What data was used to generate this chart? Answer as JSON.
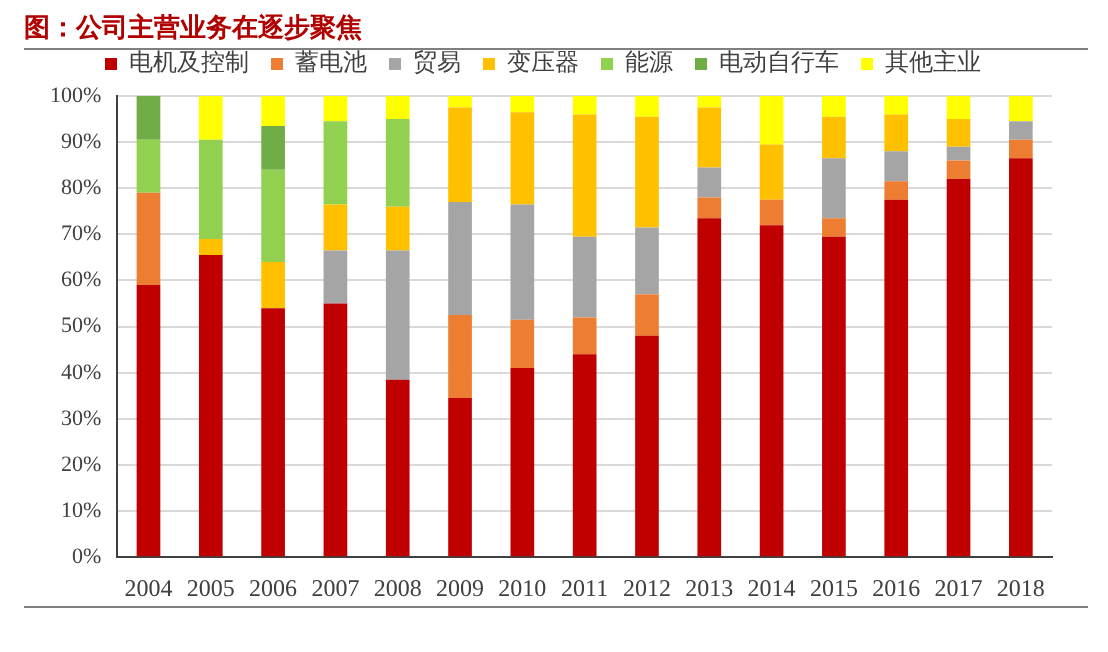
{
  "chart_data": {
    "type": "bar",
    "title": "图：公司主营业务在逐步聚焦",
    "categories": [
      "2004",
      "2005",
      "2006",
      "2007",
      "2008",
      "2009",
      "2010",
      "2011",
      "2012",
      "2013",
      "2014",
      "2015",
      "2016",
      "2017",
      "2018"
    ],
    "stacked": true,
    "series": [
      {
        "name": "电机及控制",
        "color": "#c00000",
        "values": [
          59,
          65.5,
          54,
          55,
          38.5,
          34.5,
          41,
          44,
          48,
          73.5,
          72,
          69.5,
          77.5,
          82,
          86.5
        ]
      },
      {
        "name": "蓄电池",
        "color": "#ed7d31",
        "values": [
          20,
          0,
          0,
          0,
          0,
          18,
          10.5,
          8,
          9,
          4.5,
          5.5,
          4,
          4,
          4,
          4
        ]
      },
      {
        "name": "贸易",
        "color": "#a5a5a5",
        "values": [
          0,
          0,
          0,
          11.5,
          28,
          24.5,
          25,
          17.5,
          14.5,
          6.5,
          0,
          13,
          6.5,
          3,
          4
        ]
      },
      {
        "name": "变压器",
        "color": "#ffc000",
        "values": [
          0,
          3.5,
          10,
          10,
          9.5,
          20.5,
          20,
          26.5,
          24,
          13,
          12,
          9,
          8,
          6,
          0
        ]
      },
      {
        "name": "能源",
        "color": "#92d050",
        "values": [
          11.5,
          21.5,
          20,
          18,
          19,
          0,
          0,
          0,
          0,
          0,
          0,
          0,
          0,
          0,
          0
        ]
      },
      {
        "name": "电动自行车",
        "color": "#70ad47",
        "values": [
          9.5,
          0,
          9.5,
          0,
          0,
          0,
          0,
          0,
          0,
          0,
          0,
          0,
          0,
          0,
          0
        ]
      },
      {
        "name": "其他主业",
        "color": "#ffff00",
        "values": [
          0,
          9.5,
          6.5,
          5.5,
          5,
          2.5,
          3.5,
          4,
          4.5,
          2.5,
          10.5,
          4.5,
          4,
          5,
          5.5
        ]
      }
    ],
    "ylim": [
      0,
      100
    ],
    "yticks": [
      {
        "value": 0,
        "label": "0%"
      },
      {
        "value": 10,
        "label": "10%"
      },
      {
        "value": 20,
        "label": "20%"
      },
      {
        "value": 30,
        "label": "30%"
      },
      {
        "value": 40,
        "label": "40%"
      },
      {
        "value": 50,
        "label": "50%"
      },
      {
        "value": 60,
        "label": "60%"
      },
      {
        "value": 70,
        "label": "70%"
      },
      {
        "value": 80,
        "label": "80%"
      },
      {
        "value": 90,
        "label": "90%"
      },
      {
        "value": 100,
        "label": "100%"
      }
    ],
    "grid": "y",
    "legend": "top"
  }
}
